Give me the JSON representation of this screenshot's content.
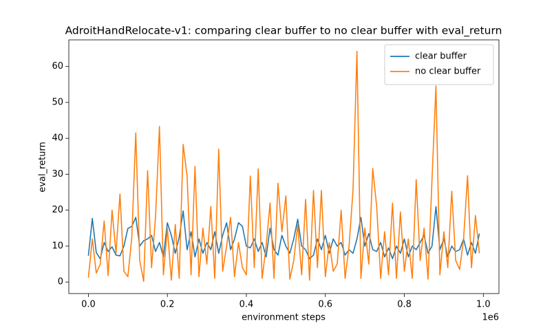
{
  "chart_data": {
    "type": "line",
    "title": "AdroitHandRelocate-v1: comparing clear buffer to no clear buffer with eval_return",
    "x_label": "environment steps",
    "y_label": "eval_return",
    "x_offset_label": "1e6",
    "x": [
      0,
      10000,
      20000,
      30000,
      40000,
      50000,
      60000,
      70000,
      80000,
      90000,
      100000,
      110000,
      120000,
      130000,
      140000,
      150000,
      160000,
      170000,
      180000,
      190000,
      200000,
      210000,
      220000,
      230000,
      240000,
      250000,
      260000,
      270000,
      280000,
      290000,
      300000,
      310000,
      320000,
      330000,
      340000,
      350000,
      360000,
      370000,
      380000,
      390000,
      400000,
      410000,
      420000,
      430000,
      440000,
      450000,
      460000,
      470000,
      480000,
      490000,
      500000,
      510000,
      520000,
      530000,
      540000,
      550000,
      560000,
      570000,
      580000,
      590000,
      600000,
      610000,
      620000,
      630000,
      640000,
      650000,
      660000,
      670000,
      680000,
      690000,
      700000,
      710000,
      720000,
      730000,
      740000,
      750000,
      760000,
      770000,
      780000,
      790000,
      800000,
      810000,
      820000,
      830000,
      840000,
      850000,
      860000,
      870000,
      880000,
      890000,
      900000,
      910000,
      920000,
      930000,
      940000,
      950000,
      960000,
      970000,
      980000,
      990000
    ],
    "series": [
      {
        "name": "clear buffer",
        "color": "#1f77b4",
        "values": [
          7.3,
          17.7,
          8.2,
          6.5,
          11,
          8.5,
          9.8,
          7.5,
          7.3,
          10,
          14.9,
          15.5,
          18,
          10,
          11.5,
          12,
          13,
          8.5,
          11,
          7,
          16.5,
          13,
          8,
          12.5,
          19.8,
          9,
          14,
          7,
          12,
          8,
          11,
          9,
          14,
          8,
          13,
          16.5,
          9,
          12,
          16.5,
          15.5,
          10,
          9.5,
          12,
          8.5,
          11,
          7,
          15,
          9,
          7.5,
          13,
          10,
          8,
          12,
          17.5,
          10,
          9,
          6.5,
          7.5,
          12,
          9,
          13,
          8,
          12,
          10,
          11,
          7.5,
          9,
          8,
          12,
          18,
          10,
          13.5,
          9,
          8.5,
          11,
          7,
          9.5,
          6.5,
          10,
          8,
          12,
          7,
          10,
          9,
          11,
          13,
          8,
          10,
          21,
          9,
          12,
          7,
          10,
          8.5,
          9,
          12,
          7.5,
          11,
          8,
          13.5
        ]
      },
      {
        "name": "no clear buffer",
        "color": "#ff7f0e",
        "values": [
          1.2,
          12,
          2.5,
          5,
          17,
          1.8,
          20,
          8,
          24.5,
          3,
          1.5,
          12.5,
          41.5,
          6,
          0.2,
          31,
          4,
          18,
          43.3,
          2,
          15,
          0.5,
          16,
          1,
          38.3,
          29.5,
          2,
          32.2,
          1.5,
          15,
          5,
          21,
          1,
          37,
          3,
          10,
          18,
          1.5,
          11,
          4,
          2,
          29.5,
          4,
          31.5,
          1,
          10,
          22,
          1,
          27.5,
          14,
          24,
          0.8,
          6,
          16,
          2,
          23,
          0.5,
          25.5,
          4,
          25.5,
          1.5,
          11,
          3,
          5,
          20,
          1,
          10,
          25.5,
          64.2,
          1,
          15,
          5,
          31.6,
          21,
          1,
          14,
          2,
          22,
          1,
          19.5,
          3,
          12,
          1,
          28.5,
          6,
          15,
          0.8,
          28.5,
          54.6,
          2,
          14,
          4,
          25.3,
          6,
          3.5,
          12,
          29.6,
          4,
          18.5,
          8
        ]
      }
    ],
    "xlim": [
      -49500,
      1039500
    ],
    "ylim": [
      -3.21,
      67.4
    ],
    "xticks": [
      {
        "value": 0,
        "label": "0.0"
      },
      {
        "value": 200000,
        "label": "0.2"
      },
      {
        "value": 400000,
        "label": "0.4"
      },
      {
        "value": 600000,
        "label": "0.6"
      },
      {
        "value": 800000,
        "label": "0.8"
      },
      {
        "value": 1000000,
        "label": "1.0"
      }
    ],
    "yticks": [
      0,
      10,
      20,
      30,
      40,
      50,
      60
    ],
    "legend": "upper right",
    "grid": false
  }
}
